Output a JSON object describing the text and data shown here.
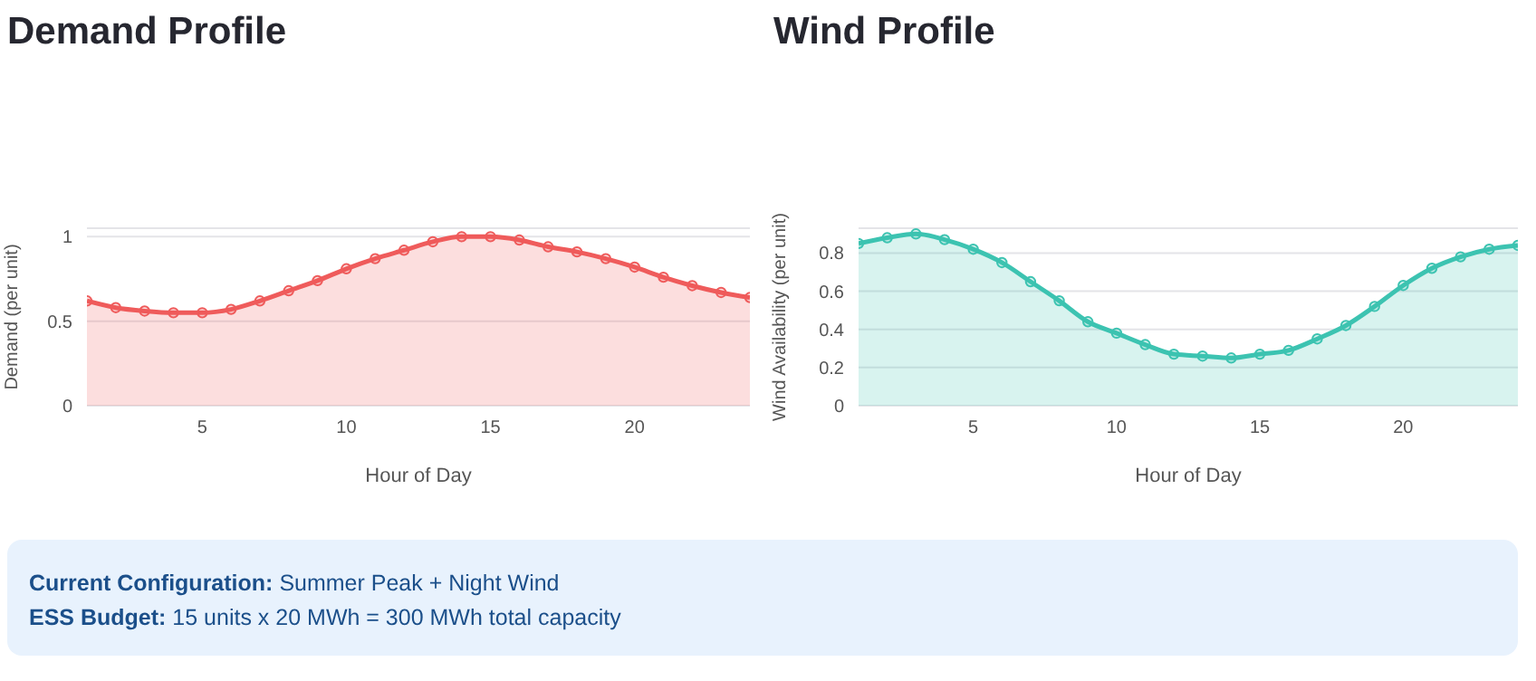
{
  "chart_data": [
    {
      "type": "area",
      "title": "Demand Profile",
      "xlabel": "Hour of Day",
      "ylabel": "Demand (per unit)",
      "x": [
        1,
        2,
        3,
        4,
        5,
        6,
        7,
        8,
        9,
        10,
        11,
        12,
        13,
        14,
        15,
        16,
        17,
        18,
        19,
        20,
        21,
        22,
        23,
        24
      ],
      "series": [
        {
          "color": "#ef5b5b",
          "values": [
            0.62,
            0.58,
            0.56,
            0.55,
            0.55,
            0.57,
            0.62,
            0.68,
            0.74,
            0.81,
            0.87,
            0.92,
            0.97,
            1.0,
            1.0,
            0.98,
            0.94,
            0.91,
            0.87,
            0.82,
            0.76,
            0.71,
            0.67,
            0.64
          ]
        }
      ],
      "xlim": [
        1,
        24
      ],
      "xticks": [
        5,
        10,
        15,
        20
      ],
      "ylim": [
        0,
        1.05
      ],
      "yticks": [
        0,
        0.5,
        1
      ],
      "grid": "y",
      "marker": "circle",
      "line_style": "solid",
      "legend": false
    },
    {
      "type": "area",
      "title": "Wind Profile",
      "xlabel": "Hour of Day",
      "ylabel": "Wind Availability (per unit)",
      "x": [
        1,
        2,
        3,
        4,
        5,
        6,
        7,
        8,
        9,
        10,
        11,
        12,
        13,
        14,
        15,
        16,
        17,
        18,
        19,
        20,
        21,
        22,
        23,
        24
      ],
      "series": [
        {
          "color": "#3cc3b1",
          "values": [
            0.85,
            0.88,
            0.9,
            0.87,
            0.82,
            0.75,
            0.65,
            0.55,
            0.44,
            0.38,
            0.32,
            0.27,
            0.26,
            0.25,
            0.27,
            0.29,
            0.35,
            0.42,
            0.52,
            0.63,
            0.72,
            0.78,
            0.82,
            0.84
          ]
        }
      ],
      "xlim": [
        1,
        24
      ],
      "xticks": [
        5,
        10,
        15,
        20
      ],
      "ylim": [
        0,
        0.93
      ],
      "yticks": [
        0,
        0.2,
        0.4,
        0.6,
        0.8
      ],
      "grid": "y",
      "marker": "circle",
      "line_style": "solid",
      "legend": false
    },
    {
      "type": "other",
      "annotations": [
        "Current Configuration: Summer Peak + Night Wind",
        "ESS Budget: 15 units x 20 MWh = 300 MWh total capacity"
      ]
    }
  ]
}
